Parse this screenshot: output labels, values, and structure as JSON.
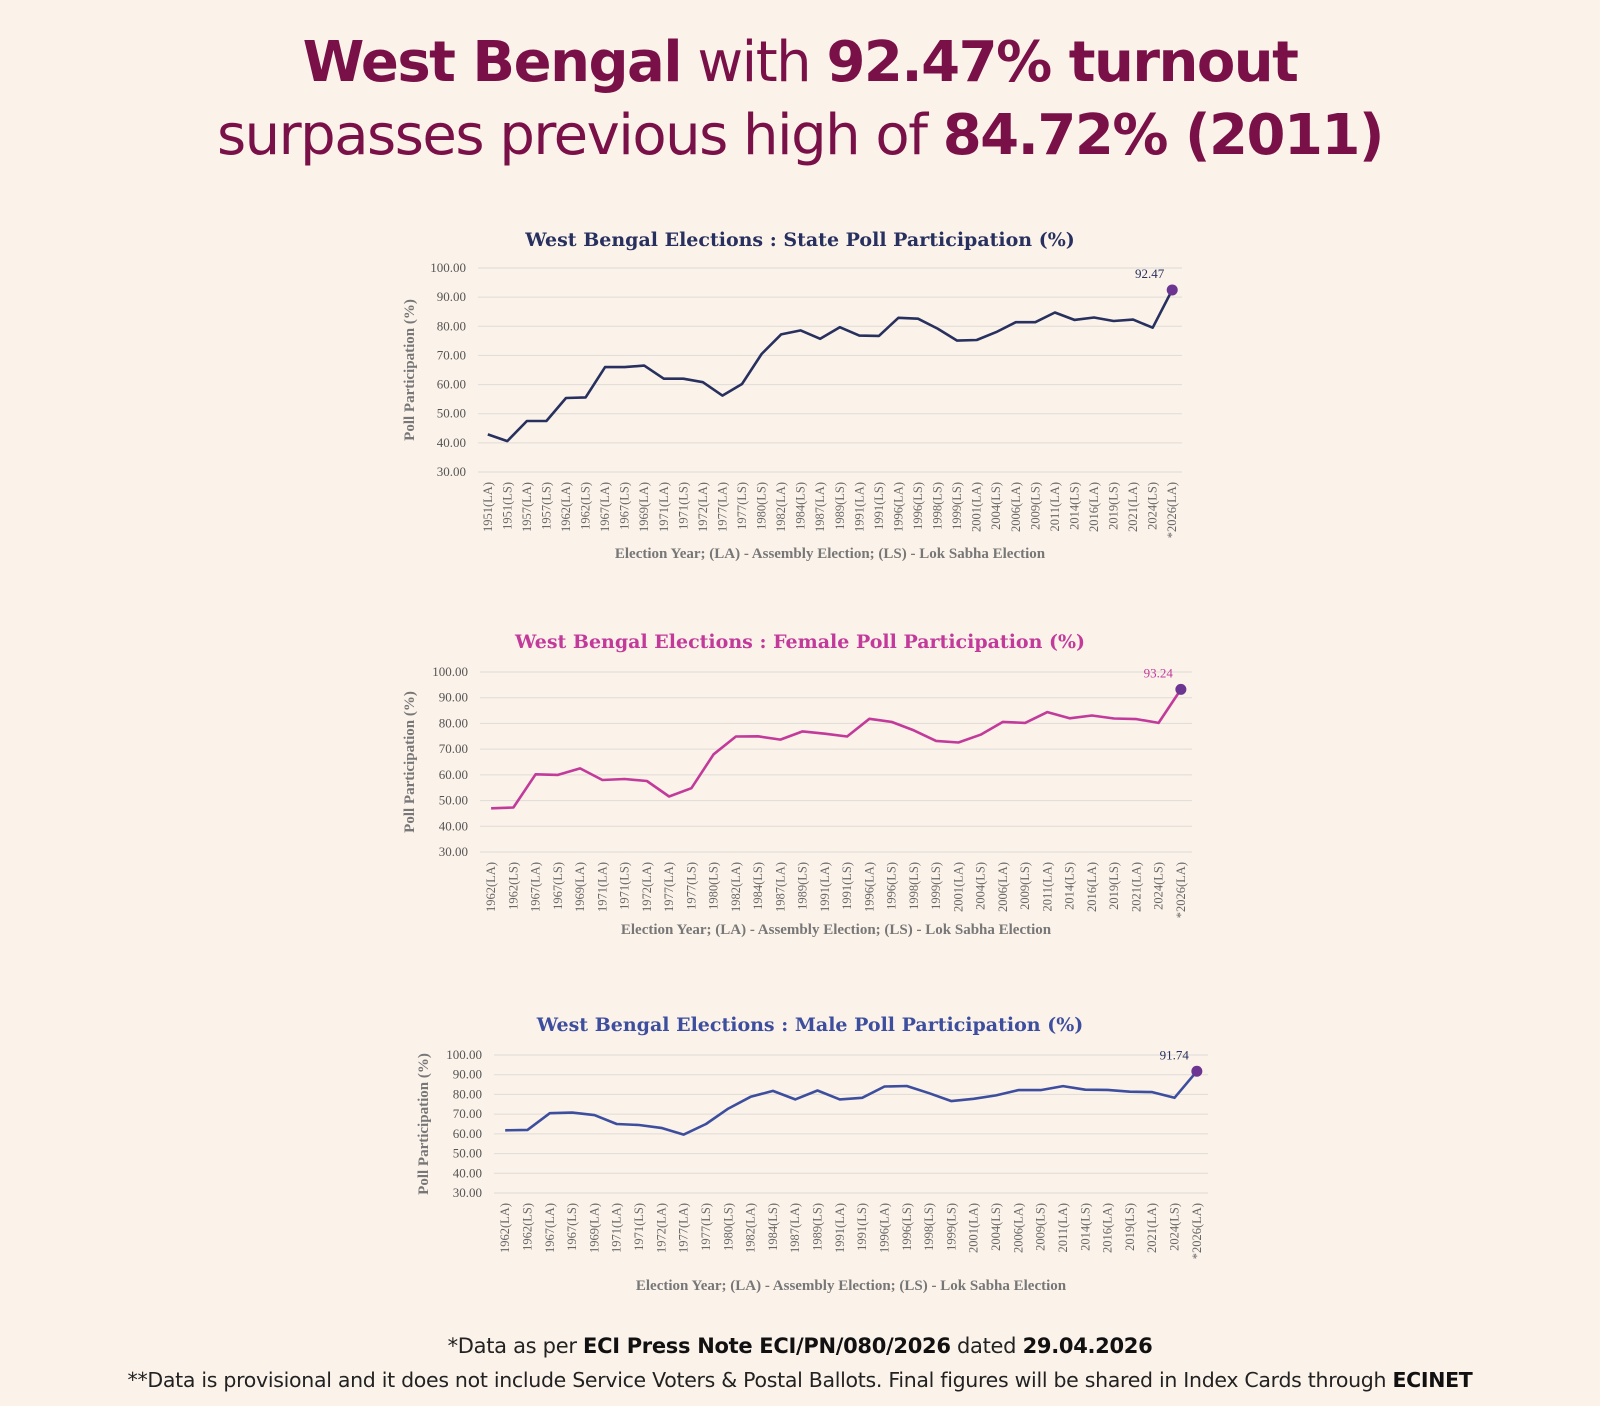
{
  "headline": {
    "line1_bold1": "West Bengal",
    "line1_light": " with ",
    "line1_bold2": "92.47% turnout",
    "line2_light": "surpasses previous high of ",
    "line2_bold": "84.72% (2011)"
  },
  "footnotes": {
    "note1_prefix": "*Data as per ",
    "note1_bold": "ECI Press Note ECI/PN/080/2026",
    "note1_mid": " dated ",
    "note1_date": "29.04.2026",
    "note2_text": "**Data is provisional and it does not include Service Voters & Postal Ballots. Final figures will be shared in Index Cards through ",
    "note2_bold": "ECINET"
  },
  "chart_data": [
    {
      "type": "line",
      "title": "West Bengal Elections : State Poll Participation (%)",
      "xlabel": "Election Year; (LA) - Assembly Election; (LS) - Lok Sabha Election",
      "ylabel": "Poll Participation (%)",
      "ylim": [
        30,
        100
      ],
      "yticks": [
        "30.00",
        "40.00",
        "50.00",
        "60.00",
        "70.00",
        "80.00",
        "90.00",
        "100.00"
      ],
      "grid": true,
      "line_color": "#27305e",
      "title_color": "#27305e",
      "marker_color": "#6b3591",
      "highlight_label": "92.47",
      "categories": [
        "1951(LA)",
        "1951(LS)",
        "1957(LA)",
        "1957(LS)",
        "1962(LA)",
        "1962(LS)",
        "1967(LA)",
        "1967(LS)",
        "1969(LA)",
        "1971(LA)",
        "1971(LS)",
        "1972(LA)",
        "1977(LA)",
        "1977(LS)",
        "1980(LS)",
        "1982(LA)",
        "1984(LS)",
        "1987(LA)",
        "1989(LS)",
        "1991(LA)",
        "1991(LS)",
        "1996(LA)",
        "1996(LS)",
        "1998(LS)",
        "1999(LS)",
        "2001(LA)",
        "2004(LS)",
        "2006(LA)",
        "2009(LS)",
        "2011(LA)",
        "2014(LS)",
        "2016(LA)",
        "2019(LS)",
        "2021(LA)",
        "2024(LS)",
        "*2026(LA)"
      ],
      "values": [
        42.9,
        40.6,
        47.5,
        47.5,
        55.4,
        55.6,
        66.0,
        66.0,
        66.5,
        62.0,
        62.0,
        60.8,
        56.2,
        60.2,
        70.5,
        77.2,
        78.6,
        75.7,
        79.7,
        76.8,
        76.7,
        82.9,
        82.6,
        79.2,
        75.1,
        75.3,
        78.0,
        81.4,
        81.4,
        84.72,
        82.2,
        83.0,
        81.8,
        82.3,
        79.5,
        92.47
      ]
    },
    {
      "type": "line",
      "title": "West Bengal Elections : Female Poll Participation (%)",
      "xlabel": "Election Year; (LA) - Assembly Election; (LS) - Lok Sabha Election",
      "ylabel": "Poll Participation (%)",
      "ylim": [
        30,
        100
      ],
      "yticks": [
        "30.00",
        "40.00",
        "50.00",
        "60.00",
        "70.00",
        "80.00",
        "90.00",
        "100.00"
      ],
      "grid": true,
      "line_color": "#c23a9a",
      "title_color": "#c23a9a",
      "marker_color": "#6b3591",
      "highlight_label": "93.24",
      "categories": [
        "1962(LA)",
        "1962(LS)",
        "1967(LA)",
        "1967(LS)",
        "1969(LA)",
        "1971(LA)",
        "1971(LS)",
        "1972(LA)",
        "1977(LA)",
        "1977(LS)",
        "1980(LS)",
        "1982(LA)",
        "1984(LS)",
        "1987(LA)",
        "1989(LS)",
        "1991(LA)",
        "1991(LS)",
        "1996(LA)",
        "1996(LS)",
        "1998(LS)",
        "1999(LS)",
        "2001(LA)",
        "2004(LS)",
        "2006(LA)",
        "2009(LS)",
        "2011(LA)",
        "2014(LS)",
        "2016(LA)",
        "2019(LS)",
        "2021(LA)",
        "2024(LS)",
        "*2026(LA)"
      ],
      "values": [
        47.0,
        47.3,
        60.2,
        60.0,
        62.5,
        58.0,
        58.4,
        57.6,
        51.6,
        54.8,
        68.0,
        74.9,
        75.0,
        73.7,
        76.9,
        76.0,
        74.9,
        81.8,
        80.6,
        77.3,
        73.2,
        72.6,
        75.6,
        80.6,
        80.2,
        84.4,
        82.0,
        83.1,
        81.9,
        81.7,
        80.2,
        93.24
      ]
    },
    {
      "type": "line",
      "title": "West Bengal Elections : Male Poll Participation (%)",
      "xlabel": "Election Year; (LA) - Assembly Election; (LS) - Lok Sabha Election",
      "ylabel": "Poll Participation (%)",
      "ylim": [
        30,
        100
      ],
      "yticks": [
        "30.00",
        "40.00",
        "50.00",
        "60.00",
        "70.00",
        "80.00",
        "90.00",
        "100.00"
      ],
      "grid": true,
      "line_color": "#3d4e9e",
      "title_color": "#3d4e9e",
      "marker_color": "#6b3591",
      "highlight_label": "91.74",
      "categories": [
        "1962(LA)",
        "1962(LS)",
        "1967(LA)",
        "1967(LS)",
        "1969(LA)",
        "1971(LA)",
        "1971(LS)",
        "1972(LA)",
        "1977(LA)",
        "1977(LS)",
        "1980(LS)",
        "1982(LA)",
        "1984(LS)",
        "1987(LA)",
        "1989(LS)",
        "1991(LA)",
        "1991(LS)",
        "1996(LA)",
        "1996(LS)",
        "1998(LS)",
        "1999(LS)",
        "2001(LA)",
        "2004(LS)",
        "2006(LA)",
        "2009(LS)",
        "2011(LA)",
        "2014(LS)",
        "2016(LA)",
        "2019(LS)",
        "2021(LA)",
        "2024(LS)",
        "*2026(LA)"
      ],
      "values": [
        61.8,
        62.0,
        70.5,
        70.8,
        69.5,
        65.0,
        64.5,
        63.0,
        59.6,
        65.0,
        72.8,
        78.8,
        81.8,
        77.5,
        82.0,
        77.5,
        78.3,
        84.0,
        84.3,
        80.6,
        76.6,
        77.8,
        79.5,
        82.2,
        82.2,
        84.2,
        82.4,
        82.3,
        81.4,
        81.2,
        78.3,
        91.74
      ]
    }
  ]
}
